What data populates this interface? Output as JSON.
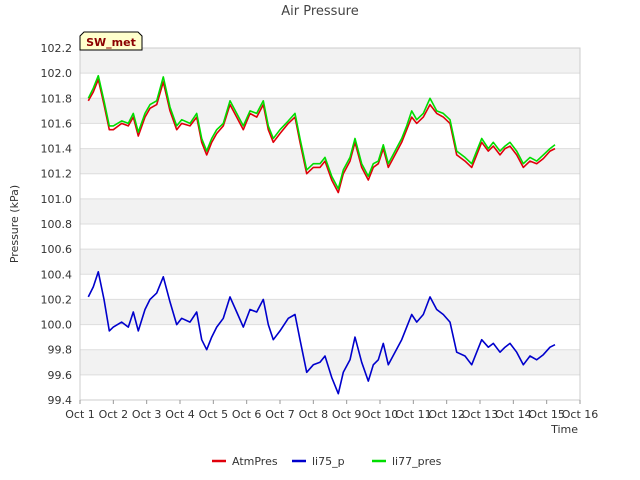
{
  "chart_data": {
    "type": "line",
    "title": "Air Pressure",
    "badge": "SW_met",
    "xlabel": "Time",
    "ylabel": "Pressure (kPa)",
    "x_ticks": [
      "Oct 1",
      "Oct 2",
      "Oct 3",
      "Oct 4",
      "Oct 5",
      "Oct 6",
      "Oct 7",
      "Oct 8",
      "Oct 9",
      "Oct 10",
      "Oct 11",
      "Oct 12",
      "Oct 13",
      "Oct 14",
      "Oct 15",
      "Oct 16"
    ],
    "y_ticks": [
      "99.4",
      "99.6",
      "99.8",
      "100.0",
      "100.2",
      "100.4",
      "100.6",
      "100.8",
      "101.0",
      "101.2",
      "101.4",
      "101.6",
      "101.8",
      "102.0",
      "102.2"
    ],
    "xlim": [
      1,
      16
    ],
    "ylim": [
      99.4,
      102.2
    ],
    "grid": true,
    "legend_position": "bottom",
    "series": [
      {
        "name": "AtmPres",
        "color": "#e0000b",
        "x": [
          1.25,
          1.4,
          1.55,
          1.72,
          1.88,
          2.0,
          2.25,
          2.45,
          2.6,
          2.75,
          2.95,
          3.1,
          3.3,
          3.5,
          3.7,
          3.9,
          4.05,
          4.3,
          4.5,
          4.65,
          4.8,
          4.95,
          5.1,
          5.3,
          5.5,
          5.7,
          5.9,
          6.1,
          6.3,
          6.5,
          6.65,
          6.8,
          7.0,
          7.25,
          7.45,
          7.6,
          7.8,
          8.0,
          8.2,
          8.35,
          8.55,
          8.75,
          8.9,
          9.1,
          9.25,
          9.45,
          9.65,
          9.8,
          9.95,
          10.1,
          10.25,
          10.45,
          10.65,
          10.8,
          10.95,
          11.1,
          11.3,
          11.5,
          11.7,
          11.9,
          12.1,
          12.3,
          12.55,
          12.75,
          12.9,
          13.05,
          13.25,
          13.4,
          13.6,
          13.75,
          13.9,
          14.1,
          14.3,
          14.5,
          14.7,
          14.9,
          15.1,
          15.25
        ],
        "y": [
          101.78,
          101.85,
          101.95,
          101.75,
          101.55,
          101.55,
          101.6,
          101.58,
          101.65,
          101.5,
          101.65,
          101.72,
          101.75,
          101.93,
          101.7,
          101.55,
          101.6,
          101.58,
          101.65,
          101.45,
          101.35,
          101.45,
          101.52,
          101.58,
          101.75,
          101.65,
          101.55,
          101.68,
          101.65,
          101.75,
          101.55,
          101.45,
          101.52,
          101.6,
          101.65,
          101.45,
          101.2,
          101.25,
          101.25,
          101.3,
          101.15,
          101.05,
          101.2,
          101.3,
          101.45,
          101.25,
          101.15,
          101.25,
          101.28,
          101.4,
          101.25,
          101.35,
          101.45,
          101.55,
          101.65,
          101.6,
          101.65,
          101.75,
          101.68,
          101.65,
          101.6,
          101.35,
          101.3,
          101.25,
          101.35,
          101.45,
          101.38,
          101.42,
          101.35,
          101.4,
          101.42,
          101.35,
          101.25,
          101.3,
          101.28,
          101.32,
          101.38,
          101.4
        ]
      },
      {
        "name": "li75_p",
        "color": "#0000cc",
        "x": [
          1.25,
          1.4,
          1.55,
          1.72,
          1.88,
          2.0,
          2.25,
          2.45,
          2.6,
          2.75,
          2.95,
          3.1,
          3.3,
          3.5,
          3.7,
          3.9,
          4.05,
          4.3,
          4.5,
          4.65,
          4.8,
          4.95,
          5.1,
          5.3,
          5.5,
          5.7,
          5.9,
          6.1,
          6.3,
          6.5,
          6.65,
          6.8,
          7.0,
          7.25,
          7.45,
          7.6,
          7.8,
          8.0,
          8.2,
          8.35,
          8.55,
          8.75,
          8.9,
          9.1,
          9.25,
          9.45,
          9.65,
          9.8,
          9.95,
          10.1,
          10.25,
          10.45,
          10.65,
          10.8,
          10.95,
          11.1,
          11.3,
          11.5,
          11.7,
          11.9,
          12.1,
          12.3,
          12.55,
          12.75,
          12.9,
          13.05,
          13.25,
          13.4,
          13.6,
          13.75,
          13.9,
          14.1,
          14.3,
          14.5,
          14.7,
          14.9,
          15.1,
          15.25
        ],
        "y": [
          100.22,
          100.3,
          100.42,
          100.2,
          99.95,
          99.98,
          100.02,
          99.98,
          100.1,
          99.95,
          100.12,
          100.2,
          100.25,
          100.38,
          100.18,
          100.0,
          100.05,
          100.02,
          100.1,
          99.88,
          99.8,
          99.9,
          99.98,
          100.05,
          100.22,
          100.1,
          99.98,
          100.12,
          100.1,
          100.2,
          100.0,
          99.88,
          99.95,
          100.05,
          100.08,
          99.88,
          99.62,
          99.68,
          99.7,
          99.75,
          99.58,
          99.45,
          99.62,
          99.72,
          99.9,
          99.7,
          99.55,
          99.68,
          99.72,
          99.85,
          99.68,
          99.78,
          99.88,
          99.98,
          100.08,
          100.02,
          100.08,
          100.22,
          100.12,
          100.08,
          100.02,
          99.78,
          99.75,
          99.68,
          99.78,
          99.88,
          99.82,
          99.85,
          99.78,
          99.82,
          99.85,
          99.78,
          99.68,
          99.75,
          99.72,
          99.76,
          99.82,
          99.84
        ]
      },
      {
        "name": "li77_pres",
        "color": "#00dd00",
        "x": [
          1.25,
          1.4,
          1.55,
          1.72,
          1.88,
          2.0,
          2.25,
          2.45,
          2.6,
          2.75,
          2.95,
          3.1,
          3.3,
          3.5,
          3.7,
          3.9,
          4.05,
          4.3,
          4.5,
          4.65,
          4.8,
          4.95,
          5.1,
          5.3,
          5.5,
          5.7,
          5.9,
          6.1,
          6.3,
          6.5,
          6.65,
          6.8,
          7.0,
          7.25,
          7.45,
          7.6,
          7.8,
          8.0,
          8.2,
          8.35,
          8.55,
          8.75,
          8.9,
          9.1,
          9.25,
          9.45,
          9.65,
          9.8,
          9.95,
          10.1,
          10.25,
          10.45,
          10.65,
          10.8,
          10.95,
          11.1,
          11.3,
          11.5,
          11.7,
          11.9,
          12.1,
          12.3,
          12.55,
          12.75,
          12.9,
          13.05,
          13.25,
          13.4,
          13.6,
          13.75,
          13.9,
          14.1,
          14.3,
          14.5,
          14.7,
          14.9,
          15.1,
          15.25
        ],
        "y": [
          101.8,
          101.88,
          101.98,
          101.78,
          101.58,
          101.58,
          101.62,
          101.6,
          101.68,
          101.53,
          101.68,
          101.75,
          101.78,
          101.97,
          101.73,
          101.58,
          101.63,
          101.6,
          101.68,
          101.48,
          101.38,
          101.48,
          101.55,
          101.6,
          101.78,
          101.68,
          101.58,
          101.7,
          101.68,
          101.78,
          101.58,
          101.48,
          101.55,
          101.62,
          101.68,
          101.48,
          101.23,
          101.28,
          101.28,
          101.33,
          101.18,
          101.08,
          101.23,
          101.33,
          101.48,
          101.28,
          101.18,
          101.28,
          101.3,
          101.43,
          101.28,
          101.38,
          101.48,
          101.58,
          101.7,
          101.63,
          101.68,
          101.8,
          101.7,
          101.68,
          101.63,
          101.38,
          101.33,
          101.28,
          101.38,
          101.48,
          101.4,
          101.45,
          101.38,
          101.42,
          101.45,
          101.38,
          101.28,
          101.33,
          101.3,
          101.35,
          101.4,
          101.43
        ]
      }
    ]
  }
}
